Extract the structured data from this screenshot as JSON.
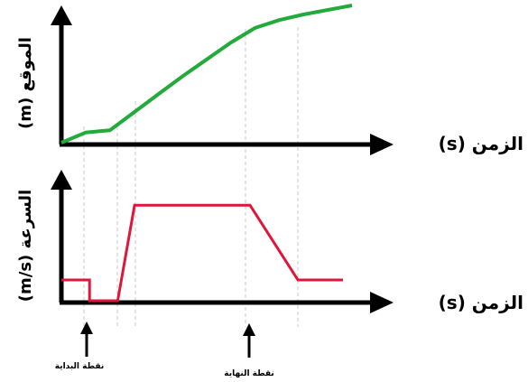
{
  "chart_data": [
    {
      "type": "line",
      "ylabel": "الموقع (m)",
      "xlabel": "الزمن (s)",
      "series": [
        {
          "color": "#22aa3a",
          "x": [
            0,
            1,
            2,
            3,
            4,
            5,
            6,
            7,
            8,
            9,
            10,
            11,
            12
          ],
          "y": [
            0,
            0.9,
            1.1,
            2.7,
            4.3,
            5.9,
            7.4,
            8.9,
            10.2,
            10.9,
            11.4,
            11.8,
            12.2
          ]
        }
      ]
    },
    {
      "type": "line",
      "ylabel": "السرعة (m/s)",
      "xlabel": "الزمن (s)",
      "series": [
        {
          "color": "#e0153a",
          "x": [
            0,
            1.0,
            1.0,
            2.0,
            2.6,
            3.0,
            6.7,
            8.4,
            10.0
          ],
          "y": [
            1.0,
            1.0,
            0,
            0,
            4.6,
            4.6,
            4.6,
            1.0,
            1.0
          ]
        }
      ],
      "annotations": [
        "نقطة البداية",
        "نقطة النهاية"
      ]
    }
  ]
}
